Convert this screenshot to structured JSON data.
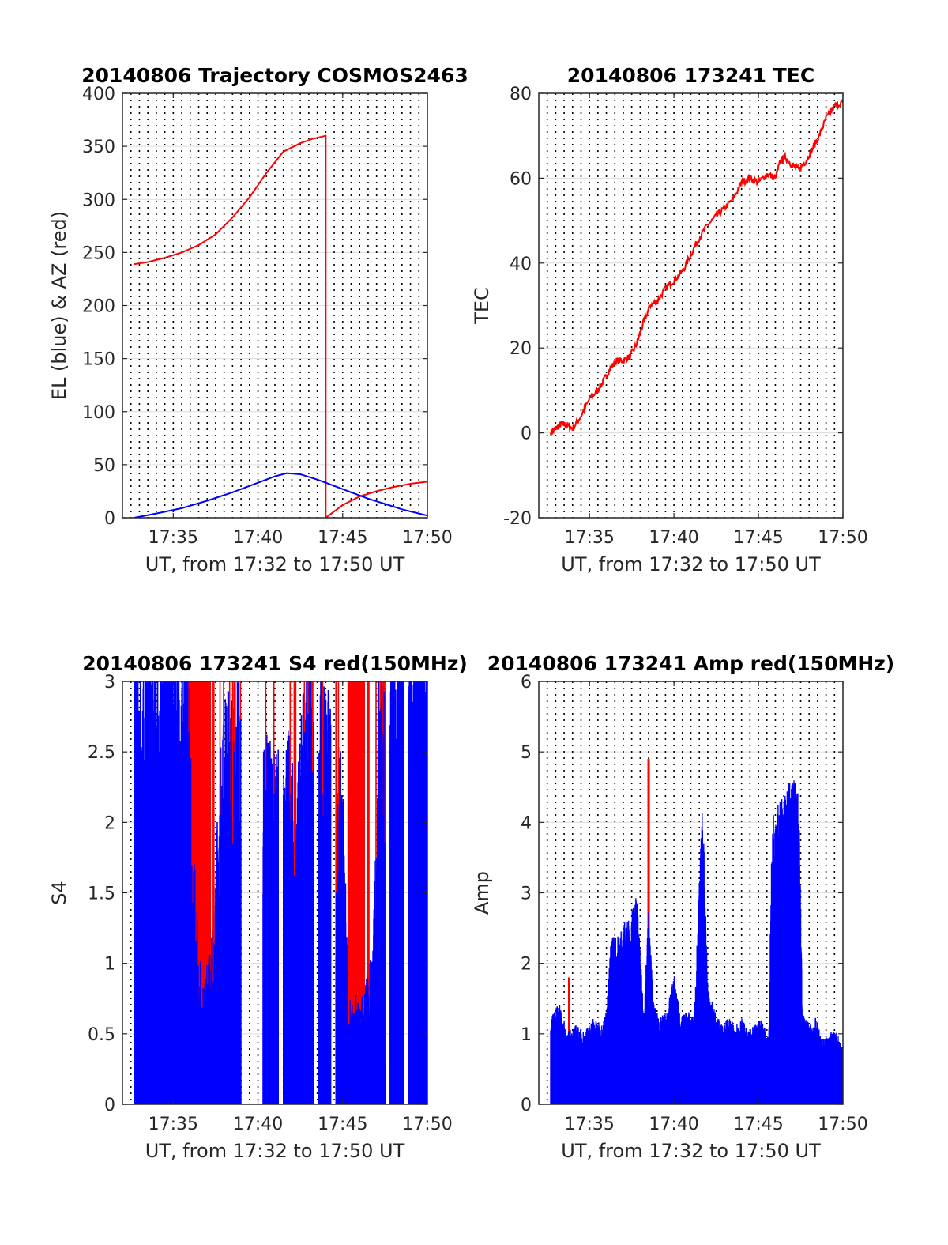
{
  "chart_data": [
    {
      "type": "line",
      "title": "20140806 Trajectory COSMOS2463",
      "xlabel": "UT, from 17:32 to 17:50 UT",
      "ylabel": "EL (blue) & AZ (red)",
      "xlim_minutes": [
        32.0,
        50.0
      ],
      "ylim": [
        0,
        400
      ],
      "x_tick_labels": [
        "17:35",
        "17:40",
        "17:45",
        "17:50"
      ],
      "x_tick_minutes": [
        35,
        40,
        45,
        50
      ],
      "y_ticks": [
        0,
        50,
        100,
        150,
        200,
        250,
        300,
        350,
        400
      ],
      "grid": "dotted vertical every 0.5 min, light horizontal at y ticks",
      "series": [
        {
          "color": "#ff0000",
          "x_minutes": [
            32.7,
            33.5,
            34.5,
            35.5,
            36.5,
            37.5,
            38.5,
            39.5,
            40.5,
            41.5,
            42.5,
            43.2,
            44.0,
            44.0,
            45.0,
            46.0,
            47.0,
            48.0,
            49.0,
            50.0
          ],
          "values": [
            239,
            241,
            245,
            250,
            257,
            267,
            283,
            302,
            325,
            345,
            353,
            357,
            360,
            0,
            12,
            20,
            25,
            29,
            32,
            34
          ]
        },
        {
          "color": "#0000ff",
          "x_minutes": [
            32.7,
            34.0,
            35.5,
            37.0,
            38.5,
            40.0,
            41.0,
            41.7,
            42.5,
            43.5,
            44.5,
            45.5,
            46.5,
            47.5,
            48.5,
            49.5,
            50.0
          ],
          "values": [
            0,
            4,
            9,
            16,
            24,
            33,
            39,
            42,
            41,
            36,
            30,
            24,
            18,
            13,
            8,
            4,
            2
          ]
        }
      ]
    },
    {
      "type": "line",
      "title": "20140806 173241 TEC",
      "xlabel": "UT, from 17:32 to 17:50 UT",
      "ylabel": "TEC",
      "xlim_minutes": [
        32.0,
        50.0
      ],
      "ylim": [
        -20,
        80
      ],
      "x_tick_labels": [
        "17:35",
        "17:40",
        "17:45",
        "17:50"
      ],
      "x_tick_minutes": [
        35,
        40,
        45,
        50
      ],
      "y_ticks": [
        -20,
        0,
        20,
        40,
        60,
        80
      ],
      "series": [
        {
          "color": "#ff0000",
          "x_minutes": [
            32.7,
            33.0,
            33.3,
            33.6,
            34.0,
            34.5,
            35.0,
            35.5,
            35.8,
            36.2,
            36.6,
            37.0,
            37.4,
            37.8,
            38.2,
            38.6,
            39.0,
            39.5,
            40.0,
            40.5,
            41.0,
            41.5,
            42.0,
            42.5,
            43.0,
            43.5,
            44.0,
            44.5,
            45.0,
            45.5,
            46.0,
            46.3,
            46.6,
            47.0,
            47.4,
            47.8,
            48.2,
            48.6,
            49.0,
            49.5,
            50.0
          ],
          "values": [
            0,
            1,
            2,
            2,
            1,
            4,
            8,
            10,
            12,
            15,
            17,
            17,
            18,
            21,
            26,
            30,
            31,
            34,
            36,
            38,
            42,
            46,
            49,
            51,
            53,
            55,
            59,
            60,
            59,
            61,
            60,
            64,
            65,
            63,
            62,
            64,
            67,
            70,
            74,
            77,
            78
          ]
        }
      ]
    },
    {
      "type": "bar",
      "title": "20140806 173241 S4 red(150MHz)",
      "xlabel": "UT, from 17:32 to 17:50 UT",
      "ylabel": "S4",
      "xlim_minutes": [
        32.0,
        50.0
      ],
      "ylim": [
        0,
        3
      ],
      "x_tick_labels": [
        "17:35",
        "17:40",
        "17:45",
        "17:50"
      ],
      "x_tick_minutes": [
        35,
        40,
        45,
        50
      ],
      "y_ticks": [
        0,
        0.5,
        1,
        1.5,
        2,
        2.5,
        3
      ],
      "y_tick_labels": [
        "0",
        "0.5",
        "1",
        "1.5",
        "2",
        "2.5",
        "3"
      ],
      "series": [
        {
          "color": "#ff0000",
          "description_values": "saturated spikes to 3 between 17:36 and 17:47"
        },
        {
          "color": "#0000ff",
          "description_values": "dense spikes 0 to 3 across 17:32.7–17:50"
        }
      ],
      "gaps_minutes": [
        [
          39.0,
          40.3
        ],
        [
          41.2,
          41.5
        ],
        [
          43.3,
          43.6
        ],
        [
          44.3,
          44.6
        ],
        [
          47.5,
          47.8
        ],
        [
          48.6,
          48.9
        ]
      ],
      "red_dense_bands_minutes": [
        [
          36.1,
          37.2
        ],
        [
          45.3,
          46.3
        ]
      ],
      "blue_envelope": {
        "x_minutes": [
          32.7,
          35.5,
          36.0,
          36.5,
          37.0,
          37.3,
          38.0,
          38.5,
          39.0,
          40.5,
          41.0,
          41.7,
          42.2,
          42.7,
          43.0,
          44.0,
          44.5,
          45.0,
          45.3,
          45.8,
          46.3,
          46.8,
          47.2,
          47.6,
          48.5,
          50.0
        ],
        "values": [
          3,
          3,
          3,
          1.0,
          1.1,
          1.2,
          2.6,
          2.6,
          2.8,
          2.3,
          2.2,
          2.4,
          2.0,
          2.6,
          3,
          2.7,
          2.4,
          2.1,
          0.9,
          0.8,
          0.9,
          1.0,
          2.9,
          3,
          3,
          3
        ]
      }
    },
    {
      "type": "bar",
      "title": "20140806 173241 Amp red(150MHz)",
      "xlabel": "UT, from 17:32 to 17:50 UT",
      "ylabel": "Amp",
      "xlim_minutes": [
        32.0,
        50.0
      ],
      "ylim": [
        0,
        6
      ],
      "x_tick_labels": [
        "17:35",
        "17:40",
        "17:45",
        "17:50"
      ],
      "x_tick_minutes": [
        35,
        40,
        45,
        50
      ],
      "y_ticks": [
        0,
        1,
        2,
        3,
        4,
        5,
        6
      ],
      "series": [
        {
          "color": "#ff0000",
          "spikes_minutes": [
            33.8,
            38.5,
            46.8
          ],
          "spike_values": [
            1.8,
            4.9,
            4.3
          ]
        },
        {
          "color": "#0000ff",
          "x_minutes": [
            32.7,
            33.2,
            33.7,
            34.2,
            34.7,
            35.2,
            35.7,
            36.0,
            36.3,
            36.6,
            37.0,
            37.4,
            37.8,
            38.2,
            38.5,
            38.8,
            39.2,
            39.6,
            40.0,
            40.4,
            40.8,
            41.2,
            41.5,
            41.7,
            42.0,
            42.4,
            42.8,
            43.2,
            43.6,
            44.0,
            44.4,
            44.8,
            45.2,
            45.6,
            45.8,
            46.0,
            46.3,
            46.6,
            46.9,
            47.2,
            47.4,
            47.6,
            48.0,
            48.4,
            48.8,
            49.2,
            49.6,
            50.0
          ],
          "values": [
            1.2,
            1.4,
            1.0,
            1.1,
            1.0,
            1.2,
            1.1,
            1.3,
            2.4,
            2.3,
            2.5,
            2.6,
            2.9,
            1.3,
            2.7,
            1.4,
            1.2,
            1.3,
            1.8,
            1.2,
            1.3,
            1.2,
            3.1,
            4.2,
            1.7,
            1.3,
            1.1,
            1.2,
            1.1,
            1.2,
            1.0,
            1.1,
            1.2,
            0.9,
            3.8,
            4.4,
            4.2,
            4.3,
            4.6,
            4.5,
            4.2,
            1.3,
            1.1,
            1.2,
            0.9,
            1.0,
            1.0,
            0.8
          ]
        }
      ]
    }
  ]
}
